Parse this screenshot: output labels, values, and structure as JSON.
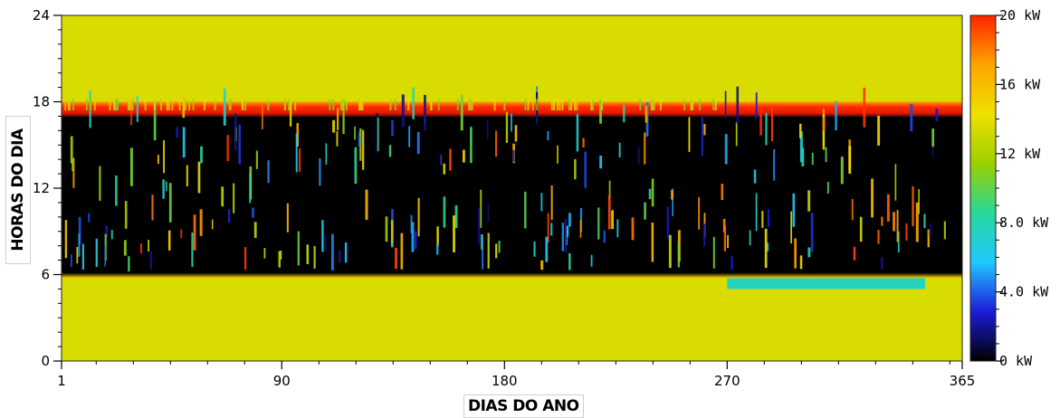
{
  "chart_data": {
    "type": "heatmap",
    "xlabel": "DIAS DO ANO",
    "ylabel": "HORAS DO DIA",
    "xlim": [
      1,
      365
    ],
    "ylim": [
      0,
      24
    ],
    "x_ticks": [
      1,
      90,
      180,
      270,
      365
    ],
    "y_ticks": [
      0,
      6,
      12,
      18,
      24
    ],
    "colorbar": {
      "min": 0,
      "max": 20,
      "unit": "kW",
      "tick_labels": [
        "0 kW",
        "4.0 kW",
        "8.0 kW",
        "12 kW",
        "16 kW",
        "20 kW"
      ],
      "tick_values": [
        0,
        4,
        8,
        12,
        16,
        20
      ],
      "colormap": [
        "#000000",
        "#1c1cd8",
        "#20c8ff",
        "#28d89a",
        "#9bd000",
        "#f0e000",
        "#ffa500",
        "#ff2400"
      ]
    },
    "regions": [
      {
        "hours": [
          0,
          6
        ],
        "days": [
          1,
          365
        ],
        "value_kW": 13.5,
        "description": ""
      },
      {
        "hours": [
          6,
          17
        ],
        "days": [
          1,
          365
        ],
        "value_kW": 0
      },
      {
        "hours": [
          17,
          18
        ],
        "days": [
          1,
          365
        ],
        "value_kW": 19
      },
      {
        "hours": [
          18,
          24
        ],
        "days": [
          1,
          365
        ],
        "value_kW": 13.5
      },
      {
        "hours": [
          5,
          6
        ],
        "days": [
          270,
          350
        ],
        "value_kW": 7.5
      }
    ]
  }
}
